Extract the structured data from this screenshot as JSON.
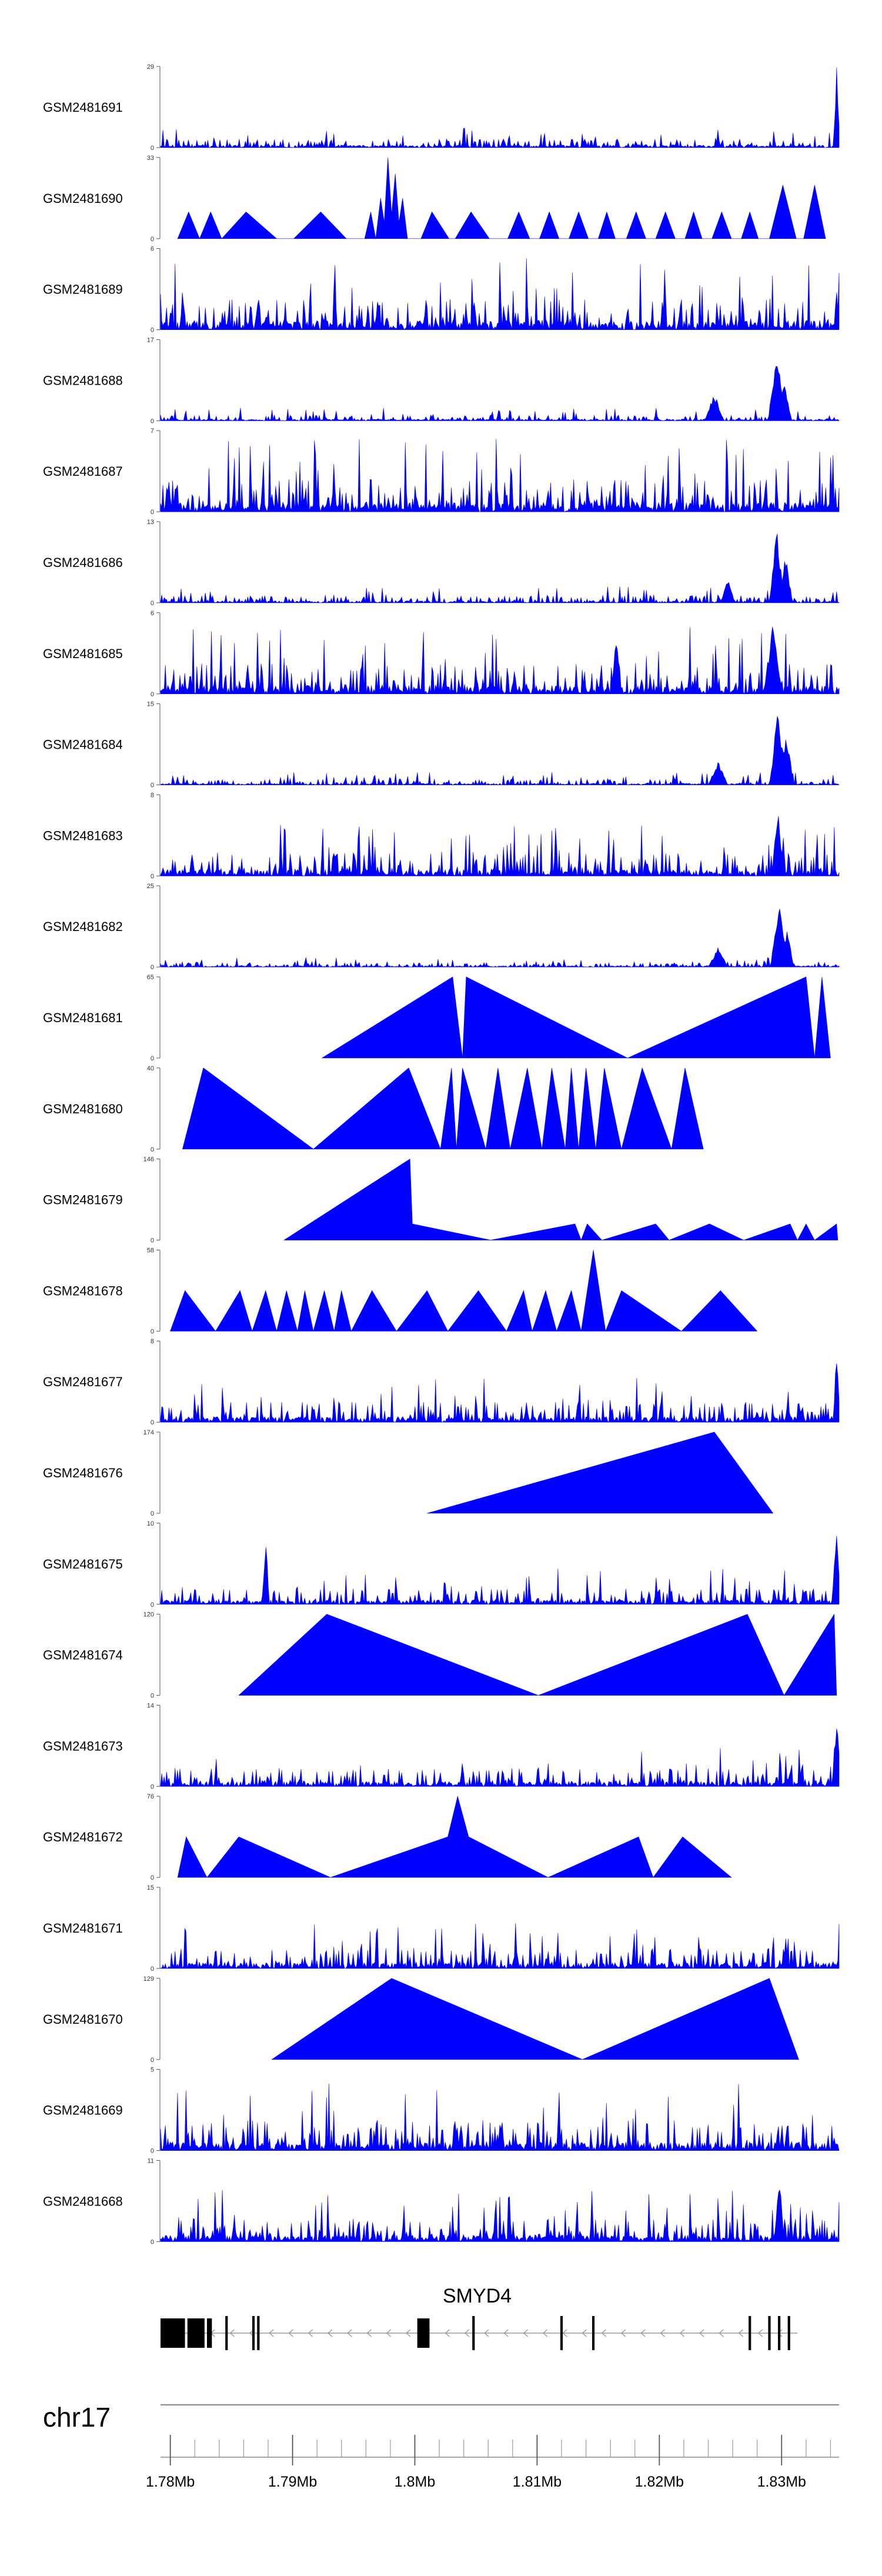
{
  "chart_data": {
    "type": "area",
    "chromosome": "chr17",
    "gene": "SMYD4",
    "x_unit": "Mb",
    "xlim": [
      1.7792,
      1.8347
    ],
    "ticks": [
      1.78,
      1.79,
      1.8,
      1.81,
      1.82,
      1.83
    ],
    "tick_labels": [
      "1.78Mb",
      "1.79Mb",
      "1.8Mb",
      "1.81Mb",
      "1.82Mb",
      "1.83Mb"
    ],
    "tracks": [
      {
        "name": "GSM2481691",
        "ymax": "29",
        "style": "noise",
        "level": 0.12,
        "seed": 11,
        "peaks": [
          [
            1.8345,
            1.0,
            0.0003
          ]
        ]
      },
      {
        "name": "GSM2481690",
        "ymax": "33",
        "style": "triangles",
        "points": [
          [
            1.7806,
            0
          ],
          [
            1.7815,
            0.33
          ],
          [
            1.7824,
            0
          ],
          [
            1.7833,
            0.33
          ],
          [
            1.7842,
            0
          ],
          [
            1.7862,
            0.33
          ],
          [
            1.7887,
            0
          ],
          [
            1.7901,
            0
          ],
          [
            1.7923,
            0.33
          ],
          [
            1.7944,
            0
          ],
          [
            1.7959,
            0
          ],
          [
            1.7964,
            0.33
          ],
          [
            1.7968,
            0
          ],
          [
            1.7972,
            0.5
          ],
          [
            1.7975,
            0.2
          ],
          [
            1.7978,
            1.0
          ],
          [
            1.7981,
            0.3
          ],
          [
            1.7984,
            0.8
          ],
          [
            1.7987,
            0.2
          ],
          [
            1.799,
            0.5
          ],
          [
            1.7994,
            0
          ],
          [
            1.8005,
            0
          ],
          [
            1.8014,
            0.33
          ],
          [
            1.8028,
            0
          ],
          [
            1.8033,
            0
          ],
          [
            1.8046,
            0.33
          ],
          [
            1.8061,
            0
          ],
          [
            1.8076,
            0
          ],
          [
            1.8085,
            0.33
          ],
          [
            1.8094,
            0
          ],
          [
            1.8102,
            0
          ],
          [
            1.811,
            0.33
          ],
          [
            1.8118,
            0
          ],
          [
            1.8126,
            0
          ],
          [
            1.8134,
            0.33
          ],
          [
            1.8142,
            0
          ],
          [
            1.815,
            0
          ],
          [
            1.8157,
            0.33
          ],
          [
            1.8164,
            0
          ],
          [
            1.8173,
            0
          ],
          [
            1.8181,
            0.33
          ],
          [
            1.8189,
            0
          ],
          [
            1.8197,
            0
          ],
          [
            1.8205,
            0.33
          ],
          [
            1.8213,
            0
          ],
          [
            1.8221,
            0
          ],
          [
            1.8228,
            0.33
          ],
          [
            1.8235,
            0
          ],
          [
            1.8243,
            0
          ],
          [
            1.8251,
            0.33
          ],
          [
            1.8259,
            0
          ],
          [
            1.8267,
            0
          ],
          [
            1.8274,
            0.33
          ],
          [
            1.8281,
            0
          ],
          [
            1.829,
            0
          ],
          [
            1.8301,
            0.66
          ],
          [
            1.8312,
            0
          ],
          [
            1.8318,
            0
          ],
          [
            1.8327,
            0.66
          ],
          [
            1.8336,
            0
          ]
        ]
      },
      {
        "name": "GSM2481689",
        "ymax": "6",
        "style": "noise",
        "level": 0.45,
        "seed": 23,
        "peaks": []
      },
      {
        "name": "GSM2481688",
        "ymax": "17",
        "style": "noise",
        "level": 0.08,
        "seed": 37,
        "peaks": [
          [
            1.8245,
            0.35,
            0.0008
          ],
          [
            1.8296,
            0.95,
            0.0007
          ],
          [
            1.8302,
            0.6,
            0.0006
          ]
        ]
      },
      {
        "name": "GSM2481687",
        "ymax": "7",
        "style": "noise",
        "level": 0.45,
        "seed": 41,
        "peaks": []
      },
      {
        "name": "GSM2481686",
        "ymax": "13",
        "style": "noise",
        "level": 0.1,
        "seed": 53,
        "peaks": [
          [
            1.8256,
            0.3,
            0.0006
          ],
          [
            1.8296,
            0.95,
            0.0006
          ],
          [
            1.8303,
            0.65,
            0.0006
          ]
        ]
      },
      {
        "name": "GSM2481685",
        "ymax": "6",
        "style": "noise",
        "level": 0.42,
        "seed": 67,
        "peaks": [
          [
            1.8165,
            0.9,
            0.0004
          ],
          [
            1.8293,
            0.9,
            0.0008
          ]
        ]
      },
      {
        "name": "GSM2481684",
        "ymax": "15",
        "style": "noise",
        "level": 0.08,
        "seed": 71,
        "peaks": [
          [
            1.8248,
            0.3,
            0.0008
          ],
          [
            1.8297,
            0.95,
            0.0007
          ],
          [
            1.8304,
            0.7,
            0.0006
          ]
        ]
      },
      {
        "name": "GSM2481683",
        "ymax": "8",
        "style": "noise",
        "level": 0.32,
        "seed": 83,
        "peaks": [
          [
            1.8297,
            0.9,
            0.0005
          ]
        ]
      },
      {
        "name": "GSM2481682",
        "ymax": "25",
        "style": "noise",
        "level": 0.06,
        "seed": 97,
        "peaks": [
          [
            1.8248,
            0.25,
            0.0008
          ],
          [
            1.8298,
            0.95,
            0.0007
          ],
          [
            1.8305,
            0.5,
            0.0005
          ]
        ]
      },
      {
        "name": "GSM2481681",
        "ymax": "65",
        "style": "triangles",
        "points": [
          [
            1.7924,
            0
          ],
          [
            1.8031,
            1.0
          ],
          [
            1.8039,
            0
          ],
          [
            1.8042,
            1.0
          ],
          [
            1.8174,
            0
          ],
          [
            1.832,
            1.0
          ],
          [
            1.8327,
            0
          ],
          [
            1.8333,
            1.0
          ],
          [
            1.834,
            0
          ]
        ]
      },
      {
        "name": "GSM2481680",
        "ymax": "40",
        "style": "triangles",
        "points": [
          [
            1.781,
            0
          ],
          [
            1.7827,
            1.0
          ],
          [
            1.7917,
            0
          ],
          [
            1.7995,
            1.0
          ],
          [
            1.8021,
            0
          ],
          [
            1.803,
            1.0
          ],
          [
            1.8034,
            0
          ],
          [
            1.8039,
            1.0
          ],
          [
            1.8058,
            0
          ],
          [
            1.8068,
            1.0
          ],
          [
            1.8078,
            0
          ],
          [
            1.8092,
            1.0
          ],
          [
            1.8104,
            0
          ],
          [
            1.8112,
            1.0
          ],
          [
            1.8123,
            0
          ],
          [
            1.8128,
            1.0
          ],
          [
            1.8134,
            0
          ],
          [
            1.814,
            1.0
          ],
          [
            1.8148,
            0
          ],
          [
            1.8155,
            1.0
          ],
          [
            1.8169,
            0
          ],
          [
            1.8186,
            1.0
          ],
          [
            1.821,
            0
          ],
          [
            1.8221,
            1.0
          ],
          [
            1.8236,
            0
          ]
        ]
      },
      {
        "name": "GSM2481679",
        "ymax": "146",
        "style": "triangles",
        "points": [
          [
            1.7893,
            0
          ],
          [
            1.7996,
            1.0
          ],
          [
            1.7998,
            0.2
          ],
          [
            1.8062,
            0
          ],
          [
            1.8131,
            0.2
          ],
          [
            1.8136,
            0
          ],
          [
            1.8141,
            0.2
          ],
          [
            1.8153,
            0
          ],
          [
            1.8197,
            0.2
          ],
          [
            1.8208,
            0
          ],
          [
            1.8241,
            0.2
          ],
          [
            1.8269,
            0
          ],
          [
            1.8307,
            0.2
          ],
          [
            1.8313,
            0
          ],
          [
            1.832,
            0.2
          ],
          [
            1.8327,
            0
          ],
          [
            1.8345,
            0.2
          ],
          [
            1.8346,
            0
          ]
        ]
      },
      {
        "name": "GSM2481678",
        "ymax": "58",
        "style": "triangles",
        "points": [
          [
            1.78,
            0
          ],
          [
            1.7812,
            0.5
          ],
          [
            1.7837,
            0
          ],
          [
            1.7857,
            0.5
          ],
          [
            1.7867,
            0
          ],
          [
            1.7878,
            0.5
          ],
          [
            1.7887,
            0
          ],
          [
            1.7895,
            0.5
          ],
          [
            1.7904,
            0
          ],
          [
            1.791,
            0.5
          ],
          [
            1.7917,
            0
          ],
          [
            1.7926,
            0.5
          ],
          [
            1.7934,
            0
          ],
          [
            1.794,
            0.5
          ],
          [
            1.7948,
            0
          ],
          [
            1.7965,
            0.5
          ],
          [
            1.7985,
            0
          ],
          [
            1.801,
            0.5
          ],
          [
            1.8027,
            0
          ],
          [
            1.8052,
            0.5
          ],
          [
            1.8075,
            0
          ],
          [
            1.8089,
            0.5
          ],
          [
            1.8096,
            0
          ],
          [
            1.8107,
            0.5
          ],
          [
            1.8116,
            0
          ],
          [
            1.8128,
            0.5
          ],
          [
            1.8136,
            0
          ],
          [
            1.8146,
            1.0
          ],
          [
            1.8156,
            0
          ],
          [
            1.8169,
            0.5
          ],
          [
            1.8218,
            0
          ],
          [
            1.825,
            0.5
          ],
          [
            1.828,
            0
          ]
        ]
      },
      {
        "name": "GSM2481677",
        "ymax": "8",
        "style": "noise",
        "level": 0.28,
        "seed": 101,
        "peaks": [
          [
            1.8345,
            0.95,
            0.0003
          ]
        ]
      },
      {
        "name": "GSM2481676",
        "ymax": "174",
        "style": "triangles",
        "points": [
          [
            1.801,
            0
          ],
          [
            1.8245,
            1.0
          ],
          [
            1.8293,
            0
          ]
        ]
      },
      {
        "name": "GSM2481675",
        "ymax": "10",
        "style": "noise",
        "level": 0.22,
        "seed": 113,
        "peaks": [
          [
            1.7878,
            0.95,
            0.0003
          ],
          [
            1.8345,
            0.95,
            0.0004
          ]
        ]
      },
      {
        "name": "GSM2481674",
        "ymax": "120",
        "style": "triangles",
        "points": [
          [
            1.7856,
            0
          ],
          [
            1.7928,
            1.0
          ],
          [
            1.8101,
            0
          ],
          [
            1.8272,
            1.0
          ],
          [
            1.8302,
            0
          ],
          [
            1.8343,
            1.0
          ],
          [
            1.8345,
            0
          ]
        ]
      },
      {
        "name": "GSM2481673",
        "ymax": "14",
        "style": "noise",
        "level": 0.25,
        "seed": 127,
        "peaks": [
          [
            1.8345,
            0.95,
            0.0004
          ]
        ]
      },
      {
        "name": "GSM2481672",
        "ymax": "76",
        "style": "triangles",
        "points": [
          [
            1.7806,
            0
          ],
          [
            1.7813,
            0.5
          ],
          [
            1.783,
            0
          ],
          [
            1.7856,
            0.5
          ],
          [
            1.7931,
            0
          ],
          [
            1.8027,
            0.5
          ],
          [
            1.8035,
            1.0
          ],
          [
            1.8044,
            0.5
          ],
          [
            1.8109,
            0
          ],
          [
            1.8183,
            0.5
          ],
          [
            1.8195,
            0
          ],
          [
            1.8219,
            0.5
          ],
          [
            1.8259,
            0
          ]
        ]
      },
      {
        "name": "GSM2481671",
        "ymax": "15",
        "style": "noise",
        "level": 0.28,
        "seed": 131,
        "peaks": []
      },
      {
        "name": "GSM2481670",
        "ymax": "129",
        "style": "triangles",
        "points": [
          [
            1.7883,
            0
          ],
          [
            1.7981,
            1.0
          ],
          [
            1.8137,
            0
          ],
          [
            1.829,
            1.0
          ],
          [
            1.8314,
            0
          ]
        ]
      },
      {
        "name": "GSM2481669",
        "ymax": "5",
        "style": "noise",
        "level": 0.42,
        "seed": 149,
        "peaks": []
      },
      {
        "name": "GSM2481668",
        "ymax": "11",
        "style": "noise",
        "level": 0.32,
        "seed": 163,
        "peaks": [
          [
            1.8298,
            0.95,
            0.0004
          ]
        ]
      }
    ],
    "gene_model": {
      "strand": "-",
      "span": [
        1.7792,
        1.8313
      ],
      "exons": [
        {
          "start": 1.7792,
          "end": 1.7812,
          "tall": true
        },
        {
          "start": 1.7814,
          "end": 1.7828,
          "tall": true
        },
        {
          "start": 1.783,
          "end": 1.7834,
          "tall": true
        },
        {
          "start": 1.7845,
          "end": 1.7847,
          "tall": false
        },
        {
          "start": 1.7867,
          "end": 1.7869,
          "tall": false
        },
        {
          "start": 1.7871,
          "end": 1.7873,
          "tall": false
        },
        {
          "start": 1.8002,
          "end": 1.8012,
          "tall": true
        },
        {
          "start": 1.8047,
          "end": 1.8049,
          "tall": false
        },
        {
          "start": 1.8119,
          "end": 1.8121,
          "tall": false
        },
        {
          "start": 1.8145,
          "end": 1.8147,
          "tall": false
        },
        {
          "start": 1.8273,
          "end": 1.8275,
          "tall": false
        },
        {
          "start": 1.8289,
          "end": 1.8291,
          "tall": false
        },
        {
          "start": 1.8297,
          "end": 1.8299,
          "tall": false
        },
        {
          "start": 1.8305,
          "end": 1.8307,
          "tall": false
        }
      ]
    }
  }
}
